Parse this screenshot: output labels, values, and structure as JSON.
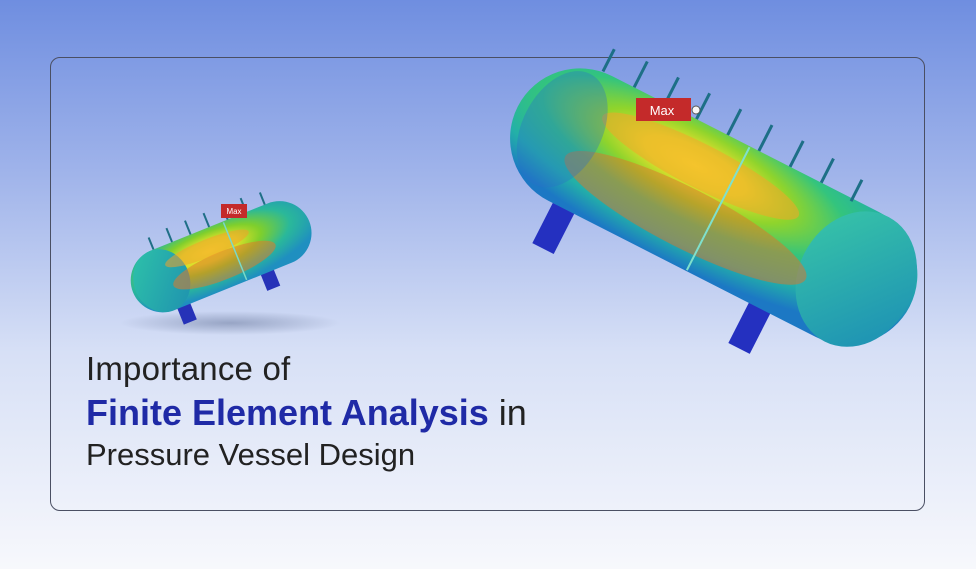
{
  "title": {
    "line1": "Importance of",
    "highlight": "Finite Element Analysis",
    "line2_rest": " in",
    "line3": "Pressure Vessel Design"
  },
  "labels": {
    "small_tag": "Max",
    "large_tag": "Max"
  },
  "colors": {
    "accent_blue": "#1f2aa6",
    "background_top": "#6f8ee0",
    "background_bottom": "#f7f8fc",
    "panel_border": "#4a4f63",
    "tag_red": "#c42a2a"
  }
}
